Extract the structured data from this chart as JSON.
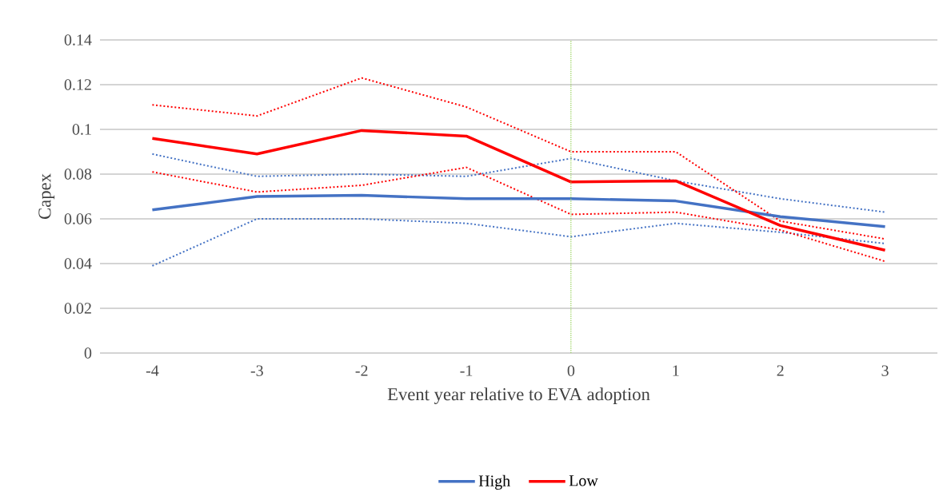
{
  "chart_data": {
    "type": "line",
    "xlabel": "Event year relative to EVA adoption",
    "ylabel": "Capex",
    "x": [
      -4,
      -3,
      -2,
      -1,
      0,
      1,
      2,
      3
    ],
    "xlim": [
      -4.5,
      3.5
    ],
    "xticks": [
      -4,
      -3,
      -2,
      -1,
      0,
      1,
      2,
      3
    ],
    "ylim": [
      0,
      0.14
    ],
    "yticks": [
      0,
      0.02,
      0.04,
      0.06,
      0.08,
      0.1,
      0.12,
      0.14
    ],
    "series": [
      {
        "color": "#4472c4",
        "line_style": "dotted",
        "values": [
          0.089,
          0.079,
          0.08,
          0.079,
          0.087,
          0.077,
          0.069,
          0.063
        ]
      },
      {
        "color": "#4472c4",
        "line_style": "dotted",
        "values": [
          0.039,
          0.06,
          0.06,
          0.058,
          0.052,
          0.058,
          0.054,
          0.049
        ]
      },
      {
        "color": "#ff0000",
        "line_style": "dotted",
        "values": [
          0.111,
          0.106,
          0.123,
          0.11,
          0.09,
          0.09,
          0.059,
          0.051
        ]
      },
      {
        "color": "#ff0000",
        "line_style": "dotted",
        "values": [
          0.081,
          0.072,
          0.075,
          0.083,
          0.062,
          0.063,
          0.055,
          0.041
        ]
      },
      {
        "name": "High",
        "color": "#4472c4",
        "values": [
          0.064,
          0.07,
          0.0705,
          0.069,
          0.069,
          0.068,
          0.061,
          0.0565
        ]
      },
      {
        "name": "Low",
        "color": "#ff0000",
        "values": [
          0.096,
          0.089,
          0.0995,
          0.097,
          0.0765,
          0.077,
          0.057,
          0.046
        ]
      }
    ],
    "ref_lines": [
      {
        "axis": "x",
        "value": 0,
        "color": "#92d050",
        "line_style": "dotted"
      }
    ],
    "grid": "y",
    "legend": "bottom",
    "line_style": "solid",
    "marker": "none"
  }
}
